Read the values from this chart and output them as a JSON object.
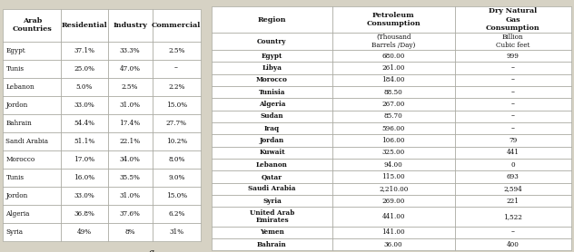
{
  "table_a_headers": [
    "Arab\nCountries",
    "Residential",
    "Industry",
    "Commercial"
  ],
  "table_a_rows": [
    [
      "Egypt",
      "37.1%",
      "33.3%",
      "2.5%"
    ],
    [
      "Tunis",
      "25.0%",
      "47.0%",
      "--"
    ],
    [
      "Lebanon",
      "5.0%",
      "2.5%",
      "2.2%"
    ],
    [
      "Jordon",
      "33.0%",
      "31.0%",
      "15.0%"
    ],
    [
      "Bahrain",
      "54.4%",
      "17.4%",
      "27.7%"
    ],
    [
      "Sandi Arabia",
      "51.1%",
      "22.1%",
      "10.2%"
    ],
    [
      "Morocco",
      "17.0%",
      "34.0%",
      "8.0%"
    ],
    [
      "Tunis",
      "16.0%",
      "35.5%",
      "9.0%"
    ],
    [
      "Jordon",
      "33.0%",
      "31.0%",
      "15.0%"
    ],
    [
      "Algeria",
      "36.8%",
      "37.6%",
      "6.2%"
    ],
    [
      "Syria",
      "49%",
      "8%",
      "31%"
    ]
  ],
  "table_b_col1_header": "Region",
  "table_b_col2_header": "Petroleum\nConsumption",
  "table_b_col3_header": "Dry Natural\nGas\nConsumption",
  "table_b_subrow1_col1": "Country",
  "table_b_subrow1_col2": "(Thousand\nBarrels /Day)",
  "table_b_subrow1_col3": "Billion\nCubic feet",
  "table_b_rows": [
    [
      "Egypt",
      "680.00",
      "999"
    ],
    [
      "Libya",
      "261.00",
      "--"
    ],
    [
      "Morocco",
      "184.00",
      "--"
    ],
    [
      "Tunisia",
      "88.50",
      "--"
    ],
    [
      "Algeria",
      "267.00",
      "--"
    ],
    [
      "Sudan",
      "85.70",
      "--"
    ],
    [
      "Iraq",
      "596.00",
      "--"
    ],
    [
      "Jordan",
      "106.00",
      "79"
    ],
    [
      "Kuwait",
      "325.00",
      "441"
    ],
    [
      "Lebanon",
      "94.00",
      "0"
    ],
    [
      "Qatar",
      "115.00",
      "693"
    ],
    [
      "Saudi Arabia",
      "2,210.00",
      "2,594"
    ],
    [
      "Syria",
      "269.00",
      "221"
    ],
    [
      "United Arab\nEmirates",
      "441.00",
      "1,522"
    ],
    [
      "Yemen",
      "141.00",
      "--"
    ],
    [
      "Bahrain",
      "36.00",
      "400"
    ]
  ],
  "bg_color": "#d6d2c4",
  "cell_color": "#ffffff",
  "line_color": "#999990",
  "text_color": "#111111",
  "header_text_color": "#111111",
  "font_size_header": 5.8,
  "font_size_data": 5.2,
  "label_fontsize": 7.5
}
